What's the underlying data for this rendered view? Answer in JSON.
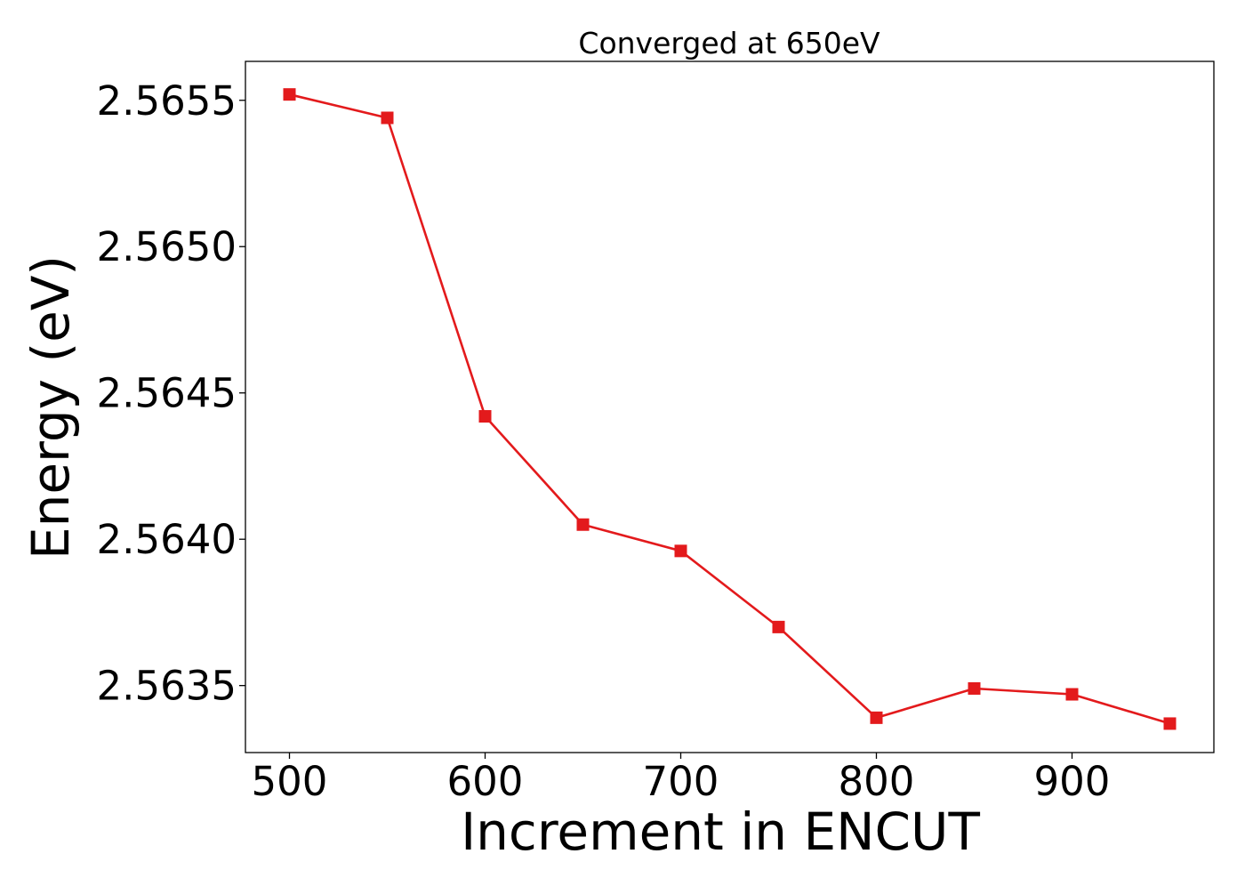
{
  "chart_data": {
    "type": "line",
    "title": "Converged at 650eV",
    "xlabel": "Increment in ENCUT",
    "ylabel": "Energy (eV)",
    "x": [
      500,
      550,
      600,
      650,
      700,
      750,
      800,
      850,
      900,
      950
    ],
    "series": [
      {
        "values": [
          2.56552,
          2.56544,
          2.56442,
          2.56405,
          2.56396,
          2.5637,
          2.56339,
          2.56349,
          2.56347,
          2.56337
        ],
        "color": "#e31a1c",
        "marker": "square"
      }
    ],
    "xlim": [
      477.5,
      972.5
    ],
    "ylim": [
      2.563271,
      2.565633
    ],
    "xticks": [
      "500",
      "600",
      "700",
      "800",
      "900"
    ],
    "xtick_values": [
      500,
      600,
      700,
      800,
      900
    ],
    "yticks": [
      "2.5635",
      "2.5640",
      "2.5645",
      "2.5650",
      "2.5655"
    ],
    "ytick_values": [
      2.5635,
      2.564,
      2.5645,
      2.565,
      2.5655
    ],
    "grid": false,
    "legend": "none"
  }
}
